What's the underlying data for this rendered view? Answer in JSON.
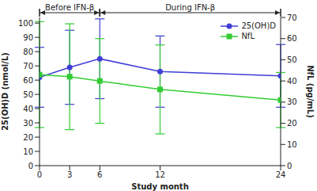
{
  "chart_data": {
    "type": "line",
    "annotations": [
      {
        "text": "Before IFN-β",
        "x": [
          0,
          6
        ]
      },
      {
        "text": "During IFN-β",
        "x": [
          6,
          24
        ]
      }
    ],
    "x_label": "Study month",
    "y_label": "25(OH)D (nmol/L)",
    "y2_label": "NfL (pg/mL)",
    "x": [
      0,
      3,
      6,
      12,
      24
    ],
    "xlim": [
      0,
      24
    ],
    "xticks": [
      0,
      3,
      6,
      12,
      24
    ],
    "ylim": [
      0,
      104
    ],
    "yticks": [
      0,
      10,
      20,
      30,
      40,
      50,
      60,
      70,
      80,
      90,
      100
    ],
    "y2lim": [
      0,
      70
    ],
    "y2ticks": [
      0,
      10,
      20,
      30,
      40,
      50,
      60,
      70
    ],
    "legend": "upper right",
    "grid": false,
    "series": [
      {
        "name": "25(OH)D",
        "color": "#3f3fd6",
        "marker": "circle",
        "values": [
          62,
          69,
          75,
          66,
          63
        ],
        "errors": [
          21,
          26,
          28,
          25,
          22
        ]
      },
      {
        "name": "NfL",
        "color": "#33cc33",
        "marker": "square",
        "axis": "y2",
        "values": [
          43,
          42,
          40,
          36,
          31
        ],
        "errors": [
          25,
          25,
          20,
          21,
          13
        ]
      }
    ]
  }
}
